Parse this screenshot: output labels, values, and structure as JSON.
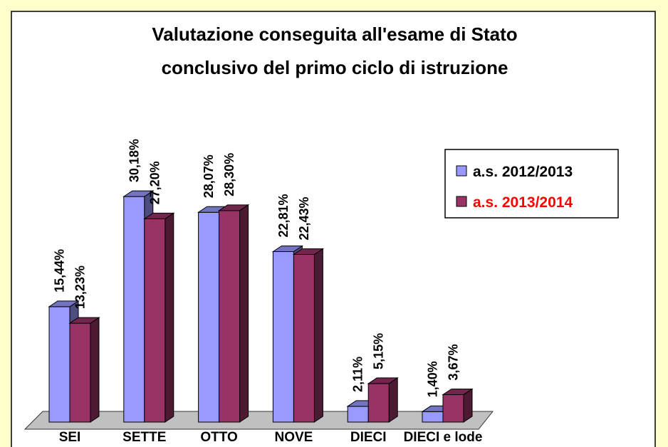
{
  "chart_data": {
    "type": "bar3d",
    "title": [
      "Valutazione conseguita all'esame di Stato",
      "conclusivo del primo ciclo di istruzione"
    ],
    "categories": [
      "SEI",
      "SETTE",
      "OTTO",
      "NOVE",
      "DIECI",
      "DIECI e lode"
    ],
    "series": [
      {
        "name": "a.s. 2012/2013",
        "color": "#9999ff",
        "values": [
          15.44,
          30.18,
          28.07,
          22.81,
          2.11,
          1.4
        ],
        "value_labels": [
          "15,44%",
          "30,18%",
          "28,07%",
          "22,81%",
          "2,11%",
          "1,40%"
        ]
      },
      {
        "name": "a.s. 2013/2014",
        "color": "#993366",
        "values": [
          13.23,
          27.2,
          28.3,
          22.43,
          5.15,
          3.67
        ],
        "value_labels": [
          "13,23%",
          "27,20%",
          "28,30%",
          "22,43%",
          "5,15%",
          "3,67%"
        ]
      }
    ],
    "legend": "right"
  }
}
